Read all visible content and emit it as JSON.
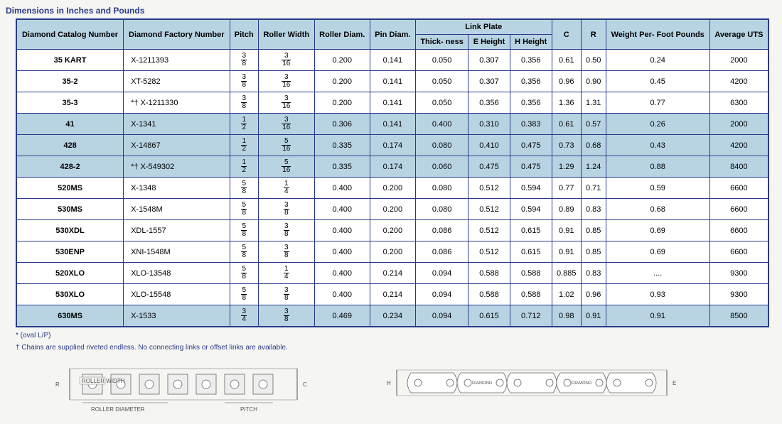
{
  "title": "Dimensions in Inches and Pounds",
  "columns": {
    "catalog": "Diamond Catalog Number",
    "factory": "Diamond Factory Number",
    "pitch": "Pitch",
    "rollerWidth": "Roller Width",
    "rollerDiam": "Roller Diam.",
    "pinDiam": "Pin Diam.",
    "linkPlate": "Link Plate",
    "thickness": "Thick- ness",
    "eHeight": "E Height",
    "hHeight": "H Height",
    "c": "C",
    "r": "R",
    "weight": "Weight Per- Foot Pounds",
    "uts": "Average UTS"
  },
  "rows": [
    {
      "band": "w",
      "catalog": "35 KART",
      "factory": "X-1211393",
      "pitchN": "3",
      "pitchD": "8",
      "rwN": "3",
      "rwD": "16",
      "rd": "0.200",
      "pd": "0.141",
      "th": "0.050",
      "eh": "0.307",
      "hh": "0.356",
      "c": "0.61",
      "r": "0.50",
      "wt": "0.24",
      "uts": "2000"
    },
    {
      "band": "w",
      "catalog": "35-2",
      "factory": "XT-5282",
      "pitchN": "3",
      "pitchD": "8",
      "rwN": "3",
      "rwD": "16",
      "rd": "0.200",
      "pd": "0.141",
      "th": "0.050",
      "eh": "0.307",
      "hh": "0.356",
      "c": "0.96",
      "r": "0.90",
      "wt": "0.45",
      "uts": "4200"
    },
    {
      "band": "w",
      "catalog": "35-3",
      "factory": "*† X-1211330",
      "pitchN": "3",
      "pitchD": "8",
      "rwN": "3",
      "rwD": "16",
      "rd": "0.200",
      "pd": "0.141",
      "th": "0.050",
      "eh": "0.356",
      "hh": "0.356",
      "c": "1.36",
      "r": "1.31",
      "wt": "0.77",
      "uts": "6300"
    },
    {
      "band": "b",
      "catalog": "41",
      "factory": "X-1341",
      "pitchN": "1",
      "pitchD": "2",
      "rwN": "3",
      "rwD": "16",
      "rd": "0.306",
      "pd": "0.141",
      "th": "0.400",
      "eh": "0.310",
      "hh": "0.383",
      "c": "0.61",
      "r": "0.57",
      "wt": "0.26",
      "uts": "2000"
    },
    {
      "band": "b",
      "catalog": "428",
      "factory": "X-14867",
      "pitchN": "1",
      "pitchD": "2",
      "rwN": "5",
      "rwD": "16",
      "rd": "0.335",
      "pd": "0.174",
      "th": "0.080",
      "eh": "0.410",
      "hh": "0.475",
      "c": "0.73",
      "r": "0.68",
      "wt": "0.43",
      "uts": "4200"
    },
    {
      "band": "b",
      "catalog": "428-2",
      "factory": "*† X-549302",
      "pitchN": "1",
      "pitchD": "2",
      "rwN": "5",
      "rwD": "16",
      "rd": "0.335",
      "pd": "0.174",
      "th": "0.060",
      "eh": "0.475",
      "hh": "0.475",
      "c": "1.29",
      "r": "1.24",
      "wt": "0.88",
      "uts": "8400"
    },
    {
      "band": "w",
      "catalog": "520MS",
      "factory": "X-1348",
      "pitchN": "5",
      "pitchD": "8",
      "rwN": "1",
      "rwD": "4",
      "rd": "0.400",
      "pd": "0.200",
      "th": "0.080",
      "eh": "0.512",
      "hh": "0.594",
      "c": "0.77",
      "r": "0.71",
      "wt": "0.59",
      "uts": "6600"
    },
    {
      "band": "w",
      "catalog": "530MS",
      "factory": "X-1548M",
      "pitchN": "5",
      "pitchD": "8",
      "rwN": "3",
      "rwD": "8",
      "rd": "0.400",
      "pd": "0.200",
      "th": "0.080",
      "eh": "0.512",
      "hh": "0.594",
      "c": "0.89",
      "r": "0.83",
      "wt": "0.68",
      "uts": "6600"
    },
    {
      "band": "w",
      "catalog": "530XDL",
      "factory": "XDL-1557",
      "pitchN": "5",
      "pitchD": "8",
      "rwN": "3",
      "rwD": "8",
      "rd": "0.400",
      "pd": "0.200",
      "th": "0.086",
      "eh": "0.512",
      "hh": "0.615",
      "c": "0.91",
      "r": "0.85",
      "wt": "0.69",
      "uts": "6600"
    },
    {
      "band": "w",
      "catalog": "530ENP",
      "factory": "XNI-1548M",
      "pitchN": "5",
      "pitchD": "8",
      "rwN": "3",
      "rwD": "8",
      "rd": "0.400",
      "pd": "0.200",
      "th": "0.086",
      "eh": "0.512",
      "hh": "0.615",
      "c": "0.91",
      "r": "0.85",
      "wt": "0.69",
      "uts": "6600"
    },
    {
      "band": "w",
      "catalog": "520XLO",
      "factory": "XLO-13548",
      "pitchN": "5",
      "pitchD": "8",
      "rwN": "1",
      "rwD": "4",
      "rd": "0.400",
      "pd": "0.214",
      "th": "0.094",
      "eh": "0.588",
      "hh": "0.588",
      "c": "0.885",
      "r": "0.83",
      "wt": "....",
      "uts": "9300"
    },
    {
      "band": "w",
      "catalog": "530XLO",
      "factory": "XLO-15548",
      "pitchN": "5",
      "pitchD": "8",
      "rwN": "3",
      "rwD": "8",
      "rd": "0.400",
      "pd": "0.214",
      "th": "0.094",
      "eh": "0.588",
      "hh": "0.588",
      "c": "1.02",
      "r": "0.96",
      "wt": "0.93",
      "uts": "9300"
    },
    {
      "band": "b",
      "catalog": "630MS",
      "factory": "X-1533",
      "pitchN": "3",
      "pitchD": "4",
      "rwN": "3",
      "rwD": "8",
      "rd": "0.469",
      "pd": "0.234",
      "th": "0.094",
      "eh": "0.615",
      "hh": "0.712",
      "c": "0.98",
      "r": "0.91",
      "wt": "0.91",
      "uts": "8500"
    }
  ],
  "footnotes": {
    "f1": "* (oval L/P)",
    "f2": "† Chains are supplied riveted endless. No connecting links or offset links are available."
  },
  "diagram": {
    "rollerWidth": "ROLLER WIDTH",
    "rollerDiameter": "ROLLER DIAMETER",
    "pitch": "PITCH",
    "r": "R",
    "c": "C",
    "h": "H",
    "e": "E",
    "diamond": "DIAMOND"
  },
  "style": {
    "borderColor": "#2a3a8a",
    "headerBg": "#b8d4e3",
    "bandBlue": "#b8d4e3",
    "bandWhite": "#ffffff",
    "titleColor": "#2a3a8a",
    "bodyBg": "#f5f5f2",
    "fontSize": 11,
    "titleFontSize": 12,
    "footnoteFontSize": 10
  }
}
